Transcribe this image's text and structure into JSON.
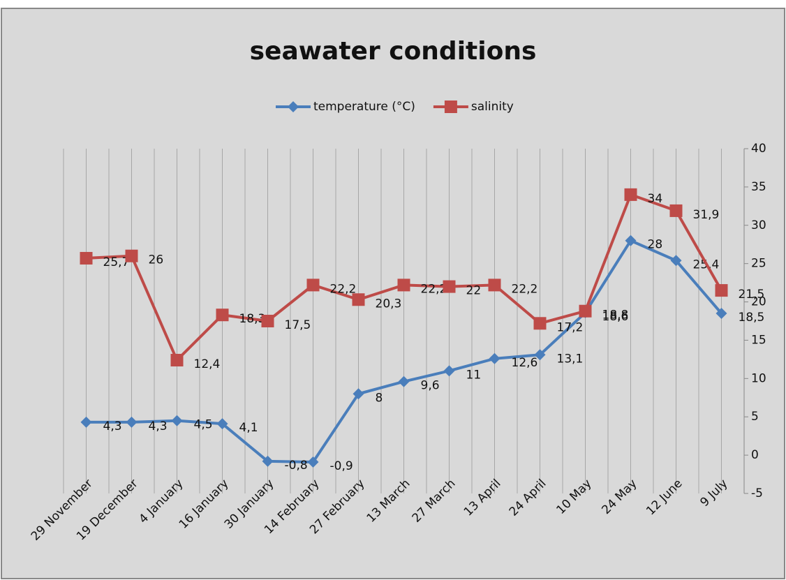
{
  "chart_data": {
    "type": "line",
    "title": "seawater conditions",
    "categories": [
      "29 November",
      "19 December",
      "4 January",
      "16 January",
      "30 January",
      "14 February",
      "27 February",
      "13 March",
      "27 March",
      "13 April",
      "24 April",
      "10 May",
      "24 May",
      "12 June",
      "9 July"
    ],
    "series": [
      {
        "name": "temperature (°C)",
        "color": "#4a7ebb",
        "marker": "diamond",
        "values": [
          4.3,
          4.3,
          4.5,
          4.1,
          -0.8,
          -0.9,
          8,
          9.6,
          11,
          12.6,
          13.1,
          18.6,
          28,
          25.4,
          18.5
        ],
        "value_labels": [
          "4,3",
          "4,3",
          "4,5",
          "4,1",
          "-0,8",
          "-0,9",
          "8",
          "9,6",
          "11",
          "12,6",
          "13,1",
          "18,6",
          "28",
          "25,4",
          "18,5"
        ]
      },
      {
        "name": "salinity",
        "color": "#be4b48",
        "marker": "square",
        "values": [
          25.7,
          26,
          12.4,
          18.3,
          17.5,
          22.2,
          20.3,
          22.2,
          22,
          22.2,
          17.2,
          18.8,
          34,
          31.9,
          21.5
        ],
        "value_labels": [
          "25,7",
          "26",
          "12,4",
          "18,3",
          "17,5",
          "22,2",
          "20,3",
          "22,2",
          "22",
          "22,2",
          "17,2",
          "18,8",
          "34",
          "31,9",
          "21,5"
        ]
      }
    ],
    "ylim": [
      -5,
      40
    ],
    "yticks": [
      -5,
      0,
      5,
      10,
      15,
      20,
      25,
      30,
      35,
      40
    ],
    "y_axis_side": "right",
    "grid": true,
    "legend": "top"
  }
}
